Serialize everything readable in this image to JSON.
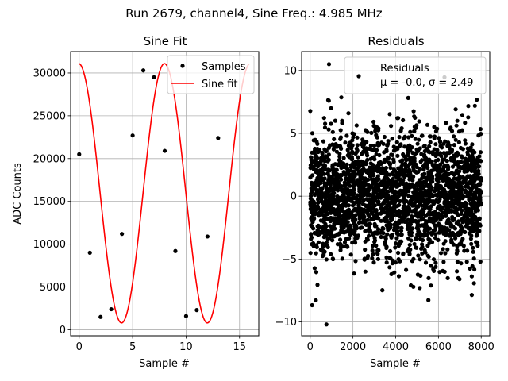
{
  "suptitle": "Run 2679, channel4, Sine Freq.: 4.985 MHz",
  "chart_data": [
    {
      "type": "scatter",
      "title": "Sine Fit",
      "xlabel": "Sample #",
      "ylabel": "ADC Counts",
      "xlim": [
        -0.8,
        16.8
      ],
      "ylim": [
        -700,
        32500
      ],
      "xticks": [
        0,
        5,
        10,
        15
      ],
      "yticks": [
        0,
        5000,
        10000,
        15000,
        20000,
        25000,
        30000
      ],
      "xtick_labels": [
        "0",
        "5",
        "10",
        "15"
      ],
      "ytick_labels": [
        "0",
        "5000",
        "10000",
        "15000",
        "20000",
        "25000",
        "30000"
      ],
      "grid": true,
      "legend": "top-right",
      "colors": {
        "samples": "#000000",
        "fit": "#ff0000"
      },
      "series": [
        {
          "name": "Samples",
          "x": [
            0,
            1,
            2,
            3,
            4,
            5,
            6,
            7,
            8,
            9,
            10,
            11,
            12,
            13
          ],
          "y": [
            20500,
            9000,
            1500,
            2400,
            11200,
            22700,
            30300,
            29500,
            20900,
            9200,
            1600,
            2300,
            10900,
            22400
          ]
        },
        {
          "name": "Sine fit",
          "function": "sine",
          "amplitude": 15150,
          "offset": 15950,
          "period": 8.0237,
          "phase": 0.0362,
          "x_range": [
            0,
            15.9
          ]
        }
      ]
    },
    {
      "type": "scatter",
      "title": "Residuals",
      "xlabel": "Sample #",
      "ylabel": "",
      "xlim": [
        -400,
        8400
      ],
      "ylim": [
        -11.1,
        11.5
      ],
      "xticks": [
        0,
        2000,
        4000,
        6000,
        8000
      ],
      "yticks": [
        -10,
        -5,
        0,
        5,
        10
      ],
      "xtick_labels": [
        "0",
        "2000",
        "4000",
        "6000",
        "8000"
      ],
      "ytick_labels": [
        "−10",
        "−5",
        "0",
        "5",
        "10"
      ],
      "grid": true,
      "legend": "top-right",
      "colors": {
        "points": "#000000"
      },
      "series": [
        {
          "name": "Residuals",
          "n_points": 8000,
          "x_range": [
            0,
            7999
          ],
          "mean": -0.0,
          "sigma": 2.49,
          "max": 10.5,
          "min": -10.2
        }
      ],
      "legend_entries": [
        "Residuals",
        "μ = -0.0, σ = 2.49"
      ]
    }
  ]
}
